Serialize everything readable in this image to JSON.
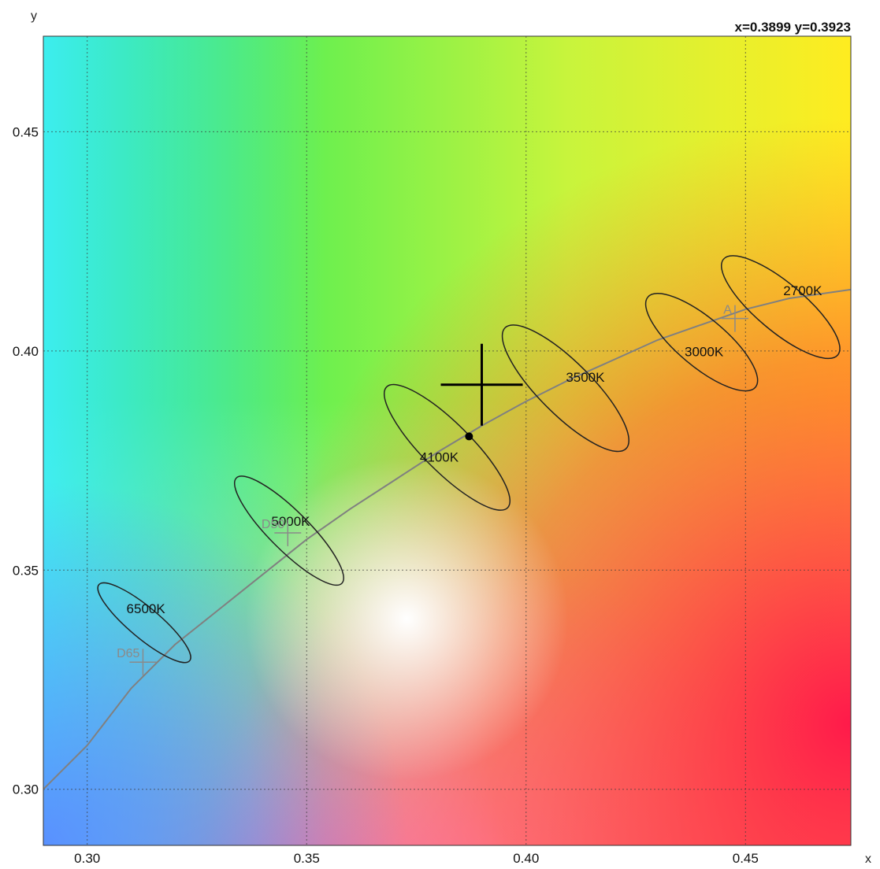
{
  "chart_data": {
    "type": "scatter",
    "xlabel": "x",
    "ylabel": "y",
    "xlim": [
      0.29,
      0.474
    ],
    "ylim": [
      0.2872,
      0.4718
    ],
    "xticks": [
      0.3,
      0.35,
      0.4,
      0.45
    ],
    "yticks": [
      0.3,
      0.35,
      0.4,
      0.45
    ],
    "x_tick_labels": [
      "0.30",
      "0.35",
      "0.40",
      "0.45"
    ],
    "y_tick_labels": [
      "0.30",
      "0.35",
      "0.40",
      "0.45"
    ],
    "grid": true,
    "background": "CIE 1931 chromaticity color gradient",
    "readout": "x=0.3899 y=0.3923",
    "cursor": {
      "x": 0.3899,
      "y": 0.3923
    },
    "measured_point": {
      "x": 0.387,
      "y": 0.3805
    },
    "planckian_locus": [
      {
        "x": 0.29,
        "y": 0.3
      },
      {
        "x": 0.3,
        "y": 0.31
      },
      {
        "x": 0.31,
        "y": 0.323
      },
      {
        "x": 0.32,
        "y": 0.333
      },
      {
        "x": 0.33,
        "y": 0.341
      },
      {
        "x": 0.34,
        "y": 0.349
      },
      {
        "x": 0.35,
        "y": 0.357
      },
      {
        "x": 0.36,
        "y": 0.364
      },
      {
        "x": 0.37,
        "y": 0.3705
      },
      {
        "x": 0.38,
        "y": 0.377
      },
      {
        "x": 0.39,
        "y": 0.383
      },
      {
        "x": 0.4,
        "y": 0.3885
      },
      {
        "x": 0.41,
        "y": 0.3935
      },
      {
        "x": 0.42,
        "y": 0.398
      },
      {
        "x": 0.43,
        "y": 0.4025
      },
      {
        "x": 0.44,
        "y": 0.406
      },
      {
        "x": 0.45,
        "y": 0.4095
      },
      {
        "x": 0.46,
        "y": 0.412
      },
      {
        "x": 0.474,
        "y": 0.414
      }
    ],
    "ellipses": [
      {
        "label": "6500K",
        "cx": 0.313,
        "cy": 0.338,
        "rx": 0.0035,
        "ry": 0.0135,
        "angle_deg": -50
      },
      {
        "label": "5000K",
        "cx": 0.346,
        "cy": 0.359,
        "rx": 0.0045,
        "ry": 0.017,
        "angle_deg": -45
      },
      {
        "label": "4100K",
        "cx": 0.382,
        "cy": 0.378,
        "rx": 0.0055,
        "ry": 0.0195,
        "angle_deg": -45
      },
      {
        "label": "3500K",
        "cx": 0.409,
        "cy": 0.3915,
        "rx": 0.006,
        "ry": 0.0195,
        "angle_deg": -45
      },
      {
        "label": "3000K",
        "cx": 0.44,
        "cy": 0.402,
        "rx": 0.0055,
        "ry": 0.016,
        "angle_deg": -50
      },
      {
        "label": "2700K",
        "cx": 0.458,
        "cy": 0.41,
        "rx": 0.0055,
        "ry": 0.017,
        "angle_deg": -50
      }
    ],
    "reference_points": [
      {
        "label": "D65",
        "x": 0.3127,
        "y": 0.329
      },
      {
        "label": "D50",
        "x": 0.3457,
        "y": 0.3585
      },
      {
        "label": "A",
        "x": 0.4476,
        "y": 0.4074
      }
    ],
    "colors": {
      "ellipse": "#222222",
      "locus": "#808080",
      "reference_mark": "#8a8a8a",
      "cursor": "#000000"
    }
  }
}
